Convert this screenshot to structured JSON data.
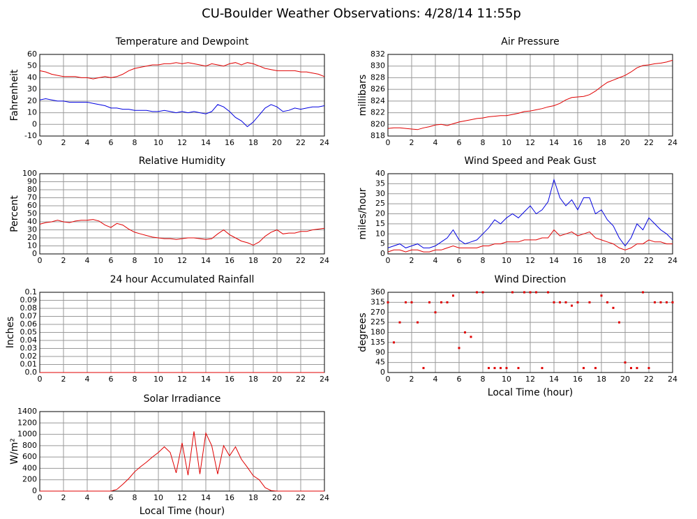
{
  "title": "CU-Boulder Weather Observations: 4/28/14 11:55p",
  "chart_data": [
    {
      "type": "line",
      "title": "Temperature and Dewpoint",
      "ylabel": "Fahrenheit",
      "x": [
        0,
        0.5,
        1,
        1.5,
        2,
        2.5,
        3,
        3.5,
        4,
        4.5,
        5,
        5.5,
        6,
        6.5,
        7,
        7.5,
        8,
        8.5,
        9,
        9.5,
        10,
        10.5,
        11,
        11.5,
        12,
        12.5,
        13,
        13.5,
        14,
        14.5,
        15,
        15.5,
        16,
        16.5,
        17,
        17.5,
        18,
        18.5,
        19,
        19.5,
        20,
        20.5,
        21,
        21.5,
        22,
        22.5,
        23,
        23.5,
        24
      ],
      "series": [
        {
          "color": "#e00000",
          "values": [
            46,
            45,
            43,
            42,
            41,
            41,
            41,
            40,
            40,
            39,
            40,
            41,
            40,
            41,
            43,
            46,
            48,
            49,
            50,
            51,
            51,
            52,
            52,
            53,
            52,
            53,
            52,
            51,
            50,
            52,
            51,
            50,
            52,
            53,
            51,
            53,
            52,
            50,
            48,
            47,
            46,
            46,
            46,
            46,
            45,
            45,
            44,
            43,
            41
          ]
        },
        {
          "color": "#0000e0",
          "values": [
            21,
            22,
            21,
            20,
            20,
            19,
            19,
            19,
            19,
            18,
            17,
            16,
            14,
            14,
            13,
            13,
            12,
            12,
            12,
            11,
            11,
            12,
            11,
            10,
            11,
            10,
            11,
            10,
            9,
            11,
            17,
            15,
            11,
            6,
            3,
            -2,
            2,
            8,
            14,
            17,
            15,
            11,
            12,
            14,
            13,
            14,
            15,
            15,
            16
          ]
        }
      ],
      "xlim": [
        0,
        24
      ],
      "xticks": [
        0,
        2,
        4,
        6,
        8,
        10,
        12,
        14,
        16,
        18,
        20,
        22,
        24
      ],
      "ylim": [
        -10,
        60
      ],
      "yticks": [
        -10,
        0,
        10,
        20,
        30,
        40,
        50,
        60
      ],
      "grid": true
    },
    {
      "type": "line",
      "title": "Air Pressure",
      "ylabel": "millibars",
      "x": [
        0,
        0.5,
        1,
        1.5,
        2,
        2.5,
        3,
        3.5,
        4,
        4.5,
        5,
        5.5,
        6,
        6.5,
        7,
        7.5,
        8,
        8.5,
        9,
        9.5,
        10,
        10.5,
        11,
        11.5,
        12,
        12.5,
        13,
        13.5,
        14,
        14.5,
        15,
        15.5,
        16,
        16.5,
        17,
        17.5,
        18,
        18.5,
        19,
        19.5,
        20,
        20.5,
        21,
        21.5,
        22,
        22.5,
        23,
        23.5,
        24
      ],
      "series": [
        {
          "color": "#e00000",
          "values": [
            819.3,
            819.4,
            819.4,
            819.3,
            819.2,
            819.1,
            819.4,
            819.6,
            819.9,
            820,
            819.8,
            820.1,
            820.4,
            820.6,
            820.8,
            821,
            821.1,
            821.3,
            821.4,
            821.5,
            821.5,
            821.7,
            821.9,
            822.2,
            822.3,
            822.5,
            822.7,
            823,
            823.2,
            823.6,
            824.2,
            824.6,
            824.7,
            824.8,
            825.1,
            825.7,
            826.5,
            827.2,
            827.6,
            828,
            828.4,
            829,
            829.7,
            830.1,
            830.2,
            830.4,
            830.5,
            830.7,
            831
          ]
        }
      ],
      "xlim": [
        0,
        24
      ],
      "xticks": [
        0,
        2,
        4,
        6,
        8,
        10,
        12,
        14,
        16,
        18,
        20,
        22,
        24
      ],
      "ylim": [
        818,
        832
      ],
      "yticks": [
        818,
        820,
        822,
        824,
        826,
        828,
        830,
        832
      ],
      "grid": true
    },
    {
      "type": "line",
      "title": "Relative Humidity",
      "ylabel": "Percent",
      "x": [
        0,
        0.5,
        1,
        1.5,
        2,
        2.5,
        3,
        3.5,
        4,
        4.5,
        5,
        5.5,
        6,
        6.5,
        7,
        7.5,
        8,
        8.5,
        9,
        9.5,
        10,
        10.5,
        11,
        11.5,
        12,
        12.5,
        13,
        13.5,
        14,
        14.5,
        15,
        15.5,
        16,
        16.5,
        17,
        17.5,
        18,
        18.5,
        19,
        19.5,
        20,
        20.5,
        21,
        21.5,
        22,
        22.5,
        23,
        23.5,
        24
      ],
      "series": [
        {
          "color": "#e00000",
          "values": [
            37,
            39,
            40,
            42,
            40,
            39,
            41,
            42,
            42,
            43,
            41,
            36,
            33,
            38,
            36,
            31,
            27,
            25,
            23,
            21,
            20,
            19,
            19,
            18,
            19,
            20,
            20,
            19,
            18,
            19,
            25,
            30,
            24,
            20,
            16,
            14,
            11,
            15,
            22,
            27,
            30,
            25,
            26,
            26,
            28,
            28,
            30,
            31,
            32
          ]
        }
      ],
      "xlim": [
        0,
        24
      ],
      "xticks": [
        0,
        2,
        4,
        6,
        8,
        10,
        12,
        14,
        16,
        18,
        20,
        22,
        24
      ],
      "ylim": [
        0,
        100
      ],
      "yticks": [
        0,
        10,
        20,
        30,
        40,
        50,
        60,
        70,
        80,
        90,
        100
      ],
      "grid": true
    },
    {
      "type": "line",
      "title": "Wind Speed and Peak Gust",
      "ylabel": "miles/hour",
      "x": [
        0,
        0.5,
        1,
        1.5,
        2,
        2.5,
        3,
        3.5,
        4,
        4.5,
        5,
        5.5,
        6,
        6.5,
        7,
        7.5,
        8,
        8.5,
        9,
        9.5,
        10,
        10.5,
        11,
        11.5,
        12,
        12.5,
        13,
        13.5,
        14,
        14.5,
        15,
        15.5,
        16,
        16.5,
        17,
        17.5,
        18,
        18.5,
        19,
        19.5,
        20,
        20.5,
        21,
        21.5,
        22,
        22.5,
        23,
        23.5,
        24
      ],
      "series": [
        {
          "color": "#0000e0",
          "values": [
            3,
            4,
            5,
            3,
            4,
            5,
            3,
            3,
            4,
            6,
            8,
            12,
            7,
            5,
            6,
            7,
            10,
            13,
            17,
            15,
            18,
            20,
            18,
            21,
            24,
            20,
            22,
            26,
            37,
            28,
            24,
            27,
            22,
            28,
            28,
            20,
            22,
            17,
            14,
            8,
            4,
            8,
            15,
            12,
            18,
            15,
            12,
            10,
            7
          ]
        },
        {
          "color": "#e00000",
          "values": [
            1,
            2,
            2,
            1,
            2,
            2,
            1,
            1,
            2,
            2,
            3,
            4,
            3,
            3,
            3,
            3,
            4,
            4,
            5,
            5,
            6,
            6,
            6,
            7,
            7,
            7,
            8,
            8,
            12,
            9,
            10,
            11,
            9,
            10,
            11,
            8,
            7,
            6,
            5,
            3,
            2,
            3,
            5,
            5,
            7,
            6,
            6,
            5,
            5
          ]
        }
      ],
      "xlim": [
        0,
        24
      ],
      "xticks": [
        0,
        2,
        4,
        6,
        8,
        10,
        12,
        14,
        16,
        18,
        20,
        22,
        24
      ],
      "ylim": [
        0,
        40
      ],
      "yticks": [
        0,
        5,
        10,
        15,
        20,
        25,
        30,
        35,
        40
      ],
      "grid": true
    },
    {
      "type": "line",
      "title": "24 hour Accumulated Rainfall",
      "ylabel": "Inches",
      "x": [
        0,
        0.5,
        1,
        1.5,
        2,
        2.5,
        3,
        3.5,
        4,
        4.5,
        5,
        5.5,
        6,
        6.5,
        7,
        7.5,
        8,
        8.5,
        9,
        9.5,
        10,
        10.5,
        11,
        11.5,
        12,
        12.5,
        13,
        13.5,
        14,
        14.5,
        15,
        15.5,
        16,
        16.5,
        17,
        17.5,
        18,
        18.5,
        19,
        19.5,
        20,
        20.5,
        21,
        21.5,
        22,
        22.5,
        23,
        23.5,
        24
      ],
      "series": [
        {
          "color": "#e00000",
          "values": [
            0,
            0,
            0,
            0,
            0,
            0,
            0,
            0,
            0,
            0,
            0,
            0,
            0,
            0,
            0,
            0,
            0,
            0,
            0,
            0,
            0,
            0,
            0,
            0,
            0,
            0,
            0,
            0,
            0,
            0,
            0,
            0,
            0,
            0,
            0,
            0,
            0,
            0,
            0,
            0,
            0,
            0,
            0,
            0,
            0,
            0,
            0,
            0,
            0
          ]
        }
      ],
      "xlim": [
        0,
        24
      ],
      "xticks": [
        0,
        2,
        4,
        6,
        8,
        10,
        12,
        14,
        16,
        18,
        20,
        22,
        24
      ],
      "ylim": [
        0,
        0.1
      ],
      "yticks": [
        {
          "value": 0,
          "label": "0.0"
        },
        0.01,
        0.02,
        0.03,
        0.04,
        0.05,
        0.06,
        0.07,
        0.08,
        0.09,
        0.1
      ],
      "grid": true
    },
    {
      "type": "scatter",
      "title": "Wind Direction",
      "ylabel": "degrees",
      "xlabel": "Local Time (hour)",
      "x": [
        0,
        0.5,
        1,
        1.5,
        2,
        2.5,
        3,
        3.5,
        4,
        4.5,
        5,
        5.5,
        6,
        6.5,
        7,
        7.5,
        8,
        8.5,
        9,
        9.5,
        10,
        10.5,
        11,
        11.5,
        12,
        12.5,
        13,
        13.5,
        14,
        14.5,
        15,
        15.5,
        16,
        16.5,
        17,
        17.5,
        18,
        18.5,
        19,
        19.5,
        20,
        20.5,
        21,
        21.5,
        22,
        22.5,
        23,
        23.5,
        24
      ],
      "series": [
        {
          "color": "#e00000",
          "values": [
            315,
            135,
            225,
            315,
            315,
            225,
            20,
            315,
            270,
            315,
            315,
            345,
            110,
            180,
            160,
            360,
            360,
            20,
            20,
            20,
            20,
            360,
            20,
            360,
            360,
            360,
            20,
            360,
            315,
            315,
            315,
            300,
            315,
            20,
            315,
            20,
            345,
            315,
            290,
            225,
            45,
            20,
            20,
            360,
            20,
            315,
            315,
            315,
            315
          ]
        }
      ],
      "xlim": [
        0,
        24
      ],
      "xticks": [
        0,
        2,
        4,
        6,
        8,
        10,
        12,
        14,
        16,
        18,
        20,
        22,
        24
      ],
      "ylim": [
        0,
        360
      ],
      "yticks": [
        0,
        45,
        90,
        135,
        180,
        225,
        270,
        315,
        360
      ],
      "grid": true
    },
    {
      "type": "line",
      "title": "Solar Irradiance",
      "ylabel": "W/m²",
      "xlabel": "Local Time (hour)",
      "x": [
        0,
        0.5,
        1,
        1.5,
        2,
        2.5,
        3,
        3.5,
        4,
        4.5,
        5,
        5.5,
        6,
        6.5,
        7,
        7.5,
        8,
        8.5,
        9,
        9.5,
        10,
        10.5,
        11,
        11.5,
        12,
        12.5,
        13,
        13.5,
        14,
        14.5,
        15,
        15.5,
        16,
        16.5,
        17,
        17.5,
        18,
        18.5,
        19,
        19.5,
        20,
        20.5,
        21,
        21.5,
        22,
        22.5,
        23,
        23.5,
        24
      ],
      "series": [
        {
          "color": "#e00000",
          "values": [
            0,
            0,
            0,
            0,
            0,
            0,
            0,
            0,
            0,
            0,
            0,
            0,
            0,
            30,
            120,
            220,
            340,
            430,
            510,
            600,
            680,
            780,
            680,
            320,
            850,
            280,
            1050,
            300,
            1020,
            800,
            300,
            800,
            620,
            780,
            560,
            420,
            270,
            200,
            60,
            10,
            0,
            0,
            0,
            0,
            0,
            0,
            0,
            0,
            0
          ]
        }
      ],
      "xlim": [
        0,
        24
      ],
      "xticks": [
        0,
        2,
        4,
        6,
        8,
        10,
        12,
        14,
        16,
        18,
        20,
        22,
        24
      ],
      "ylim": [
        0,
        1400
      ],
      "yticks": [
        0,
        200,
        400,
        600,
        800,
        1000,
        1200,
        1400
      ],
      "grid": true
    }
  ]
}
